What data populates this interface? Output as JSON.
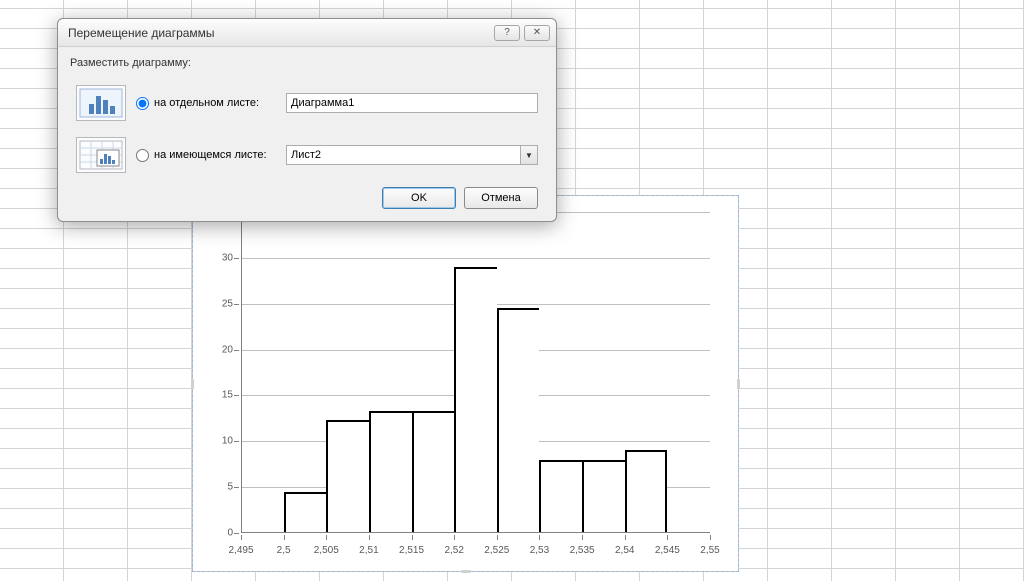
{
  "dialog": {
    "title": "Перемещение диаграммы",
    "help_icon": "?",
    "close_icon": "✕",
    "group_label": "Разместить диаграмму:",
    "option_new_sheet": {
      "label": "на отдельном листе:",
      "value": "Диаграмма1",
      "selected": true
    },
    "option_existing_sheet": {
      "label": "на имеющемся листе:",
      "value": "Лист2",
      "selected": false
    },
    "ok_label": "OK",
    "cancel_label": "Отмена"
  },
  "chart": {
    "type": "histogram",
    "background_color": "#ffffff",
    "grid_color": "#bfbfbf",
    "axis_color": "#808080",
    "bar_fill": "#ffffff",
    "bar_border": "#000000",
    "bar_border_width": 2,
    "label_fontsize": 10,
    "label_color": "#595959",
    "y": {
      "min": 0,
      "max": 35,
      "step": 5,
      "ticks": [
        0,
        5,
        10,
        15,
        20,
        25,
        30,
        35
      ]
    },
    "x": {
      "min": 2.495,
      "max": 2.55,
      "step": 0.005,
      "tick_labels": [
        "2,495",
        "2,5",
        "2,505",
        "2,51",
        "2,515",
        "2,52",
        "2,525",
        "2,53",
        "2,535",
        "2,54",
        "2,545",
        "2,55"
      ]
    },
    "bars": [
      {
        "x0": 2.5,
        "x1": 2.505,
        "h": 4.5
      },
      {
        "x0": 2.505,
        "x1": 2.51,
        "h": 12.3
      },
      {
        "x0": 2.51,
        "x1": 2.515,
        "h": 13.3
      },
      {
        "x0": 2.515,
        "x1": 2.52,
        "h": 13.3
      },
      {
        "x0": 2.52,
        "x1": 2.525,
        "h": 29
      },
      {
        "x0": 2.525,
        "x1": 2.53,
        "h": 24.5
      },
      {
        "x0": 2.53,
        "x1": 2.535,
        "h": 8
      },
      {
        "x0": 2.535,
        "x1": 2.54,
        "h": 8
      },
      {
        "x0": 2.54,
        "x1": 2.545,
        "h": 9
      }
    ]
  }
}
